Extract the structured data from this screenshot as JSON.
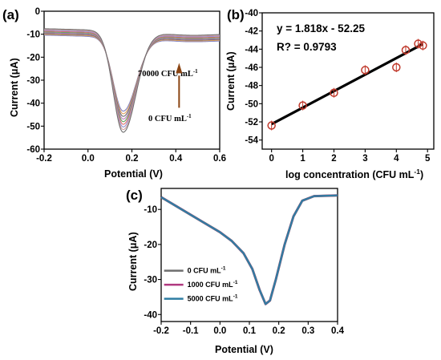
{
  "chart_data": [
    {
      "panel": "(a)",
      "type": "line",
      "xlabel": "Potential (V)",
      "ylabel": "Current (μA)",
      "xlim": [
        -0.2,
        0.6
      ],
      "ylim": [
        -60,
        0
      ],
      "xticks": [
        "-0.2",
        "0.0",
        "0.2",
        "0.4",
        "0.6"
      ],
      "yticks": [
        "0",
        "-10",
        "-20",
        "-30",
        "-40",
        "-50",
        "-60"
      ],
      "annotations": {
        "top": "70000 CFU mL",
        "top_sup": "-1",
        "bottom": "0 CFU mL",
        "bottom_sup": "-1"
      },
      "arrow_color": "#8B4513",
      "peak_x": 0.16,
      "left_start_y": -9,
      "right_end_y": -11,
      "series": [
        {
          "color": "#8080c0",
          "peak": -42
        },
        {
          "color": "#e0a060",
          "peak": -43.5
        },
        {
          "color": "#6b6b6b",
          "peak": -45
        },
        {
          "color": "#c080c0",
          "peak": -46.5
        },
        {
          "color": "#60a060",
          "peak": -48
        },
        {
          "color": "#e07070",
          "peak": -49.5
        },
        {
          "color": "#9090d0",
          "peak": -51
        },
        {
          "color": "#d0a0a0",
          "peak": -52.5
        },
        {
          "color": "#707070",
          "peak": -54
        }
      ]
    },
    {
      "panel": "(b)",
      "type": "scatter",
      "xlabel": "log concentration (CFU mL",
      "xlabel_sup": "-1",
      "xlabel_end": ")",
      "ylabel": "Current (μA)",
      "xlim": [
        -0.3,
        5.2
      ],
      "ylim": [
        -55,
        -40
      ],
      "xticks": [
        "0",
        "1",
        "2",
        "3",
        "4",
        "5"
      ],
      "yticks": [
        "-40",
        "-42",
        "-44",
        "-46",
        "-48",
        "-50",
        "-52",
        "-54"
      ],
      "equation": "y = 1.818x - 52.25",
      "r_squared": "R? = 0.9793",
      "marker_color": "#c0392b",
      "fit_color": "#000000",
      "points": [
        {
          "x": 0,
          "y": -52.4
        },
        {
          "x": 1,
          "y": -50.2
        },
        {
          "x": 2,
          "y": -48.8
        },
        {
          "x": 3,
          "y": -46.3
        },
        {
          "x": 4,
          "y": -46.0
        },
        {
          "x": 4.3,
          "y": -44.1
        },
        {
          "x": 4.7,
          "y": -43.4
        },
        {
          "x": 4.85,
          "y": -43.6
        }
      ],
      "fit": {
        "slope": 1.818,
        "intercept": -52.25,
        "x_range": [
          0,
          4.85
        ]
      }
    },
    {
      "panel": "(c)",
      "type": "line",
      "xlabel": "Potential (V)",
      "ylabel": "Current (μA)",
      "xlim": [
        -0.2,
        0.4
      ],
      "ylim": [
        -42,
        -4
      ],
      "xticks": [
        "-0.2",
        "-0.1",
        "0.0",
        "0.1",
        "0.2",
        "0.3",
        "0.4"
      ],
      "yticks": [
        "-10",
        "-20",
        "-30",
        "-40"
      ],
      "series": [
        {
          "name": "0 CFU mL",
          "name_sup": "-1",
          "color": "#6e6e6e"
        },
        {
          "name": "1000 CFU mL",
          "name_sup": "-1",
          "color": "#b0397f"
        },
        {
          "name": "5000 CFU mL",
          "name_sup": "-1",
          "color": "#2e7ea3"
        }
      ],
      "points": [
        {
          "x": -0.2,
          "y": -6.5
        },
        {
          "x": -0.15,
          "y": -9
        },
        {
          "x": -0.1,
          "y": -11.5
        },
        {
          "x": -0.05,
          "y": -14
        },
        {
          "x": 0.0,
          "y": -16.5
        },
        {
          "x": 0.04,
          "y": -19
        },
        {
          "x": 0.08,
          "y": -22.5
        },
        {
          "x": 0.11,
          "y": -27
        },
        {
          "x": 0.135,
          "y": -33
        },
        {
          "x": 0.155,
          "y": -37
        },
        {
          "x": 0.17,
          "y": -36
        },
        {
          "x": 0.19,
          "y": -30
        },
        {
          "x": 0.22,
          "y": -20
        },
        {
          "x": 0.25,
          "y": -12
        },
        {
          "x": 0.28,
          "y": -7.5
        },
        {
          "x": 0.32,
          "y": -6.2
        },
        {
          "x": 0.4,
          "y": -6.0
        }
      ]
    }
  ]
}
